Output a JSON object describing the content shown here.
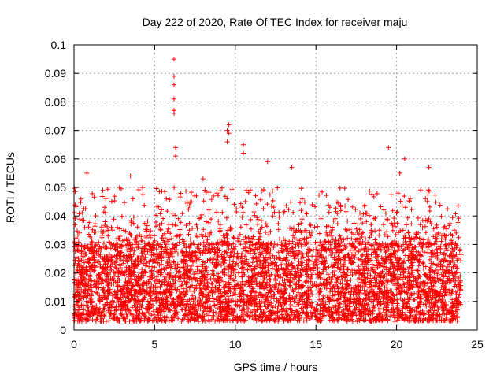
{
  "chart_data": {
    "type": "scatter",
    "title": "Day 222 of 2020, Rate Of TEC Index for receiver maju",
    "xlabel": "GPS time / hours",
    "ylabel": "ROTI / TECUs",
    "xlim": [
      0,
      25
    ],
    "ylim": [
      0,
      0.1
    ],
    "x_ticks": [
      0,
      5,
      10,
      15,
      20,
      25
    ],
    "y_ticks": [
      0,
      0.01,
      0.02,
      0.03,
      0.04,
      0.05,
      0.06,
      0.07,
      0.08,
      0.09,
      0.1
    ],
    "x_tick_labels": [
      "0",
      "5",
      "10",
      "15",
      "20",
      "25"
    ],
    "y_tick_labels": [
      "0",
      "0.01",
      "0.02",
      "0.03",
      "0.04",
      "0.05",
      "0.06",
      "0.07",
      "0.08",
      "0.09",
      "0.1"
    ],
    "grid": true,
    "marker": "plus",
    "series_color": "#ff0000",
    "data_x_range": [
      0,
      24
    ],
    "dense_band": [
      0.003,
      0.03
    ],
    "notable_points": [
      {
        "x": 6.2,
        "y": 0.095
      },
      {
        "x": 6.2,
        "y": 0.089
      },
      {
        "x": 6.2,
        "y": 0.086
      },
      {
        "x": 6.2,
        "y": 0.081
      },
      {
        "x": 6.2,
        "y": 0.077
      },
      {
        "x": 6.2,
        "y": 0.076
      },
      {
        "x": 6.3,
        "y": 0.064
      },
      {
        "x": 6.3,
        "y": 0.061
      },
      {
        "x": 9.6,
        "y": 0.072
      },
      {
        "x": 9.5,
        "y": 0.07
      },
      {
        "x": 9.6,
        "y": 0.069
      },
      {
        "x": 9.5,
        "y": 0.066
      },
      {
        "x": 10.5,
        "y": 0.065
      },
      {
        "x": 10.5,
        "y": 0.062
      },
      {
        "x": 12.0,
        "y": 0.059
      },
      {
        "x": 13.5,
        "y": 0.057
      },
      {
        "x": 19.5,
        "y": 0.064
      },
      {
        "x": 20.5,
        "y": 0.06
      },
      {
        "x": 22.0,
        "y": 0.057
      },
      {
        "x": 20.2,
        "y": 0.055
      },
      {
        "x": 0.8,
        "y": 0.055
      },
      {
        "x": 3.5,
        "y": 0.054
      },
      {
        "x": 8.0,
        "y": 0.053
      }
    ]
  }
}
